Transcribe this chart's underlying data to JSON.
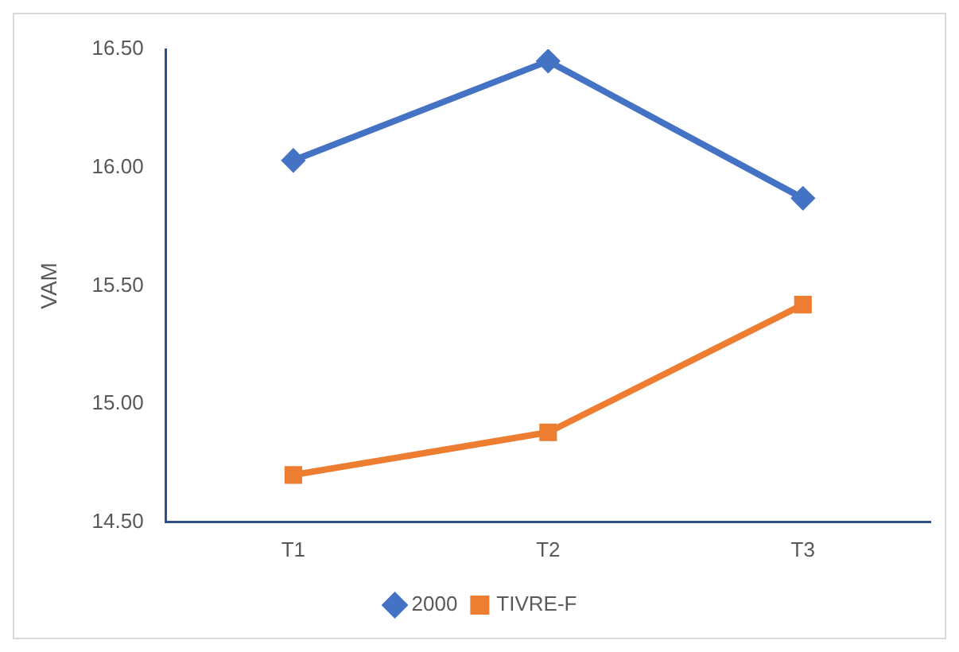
{
  "chart_data": {
    "type": "line",
    "ylabel": "VAM",
    "categories": [
      "T1",
      "T2",
      "T3"
    ],
    "series": [
      {
        "name": "2000",
        "color": "#4472c4",
        "marker": "diamond",
        "values": [
          16.03,
          16.45,
          15.87
        ]
      },
      {
        "name": "TIVRE-F",
        "color": "#ed7d31",
        "marker": "square",
        "values": [
          14.7,
          14.88,
          15.42
        ]
      }
    ],
    "ylim": [
      14.5,
      16.5
    ],
    "yticks": [
      {
        "value": 14.5,
        "label": "14.50"
      },
      {
        "value": 15,
        "label": "15.00"
      },
      {
        "value": 15.5,
        "label": "15.50"
      },
      {
        "value": 16,
        "label": "16.00"
      },
      {
        "value": 16.5,
        "label": "16.50"
      }
    ],
    "grid": false,
    "legend": "bottom",
    "line_style": "solid"
  }
}
